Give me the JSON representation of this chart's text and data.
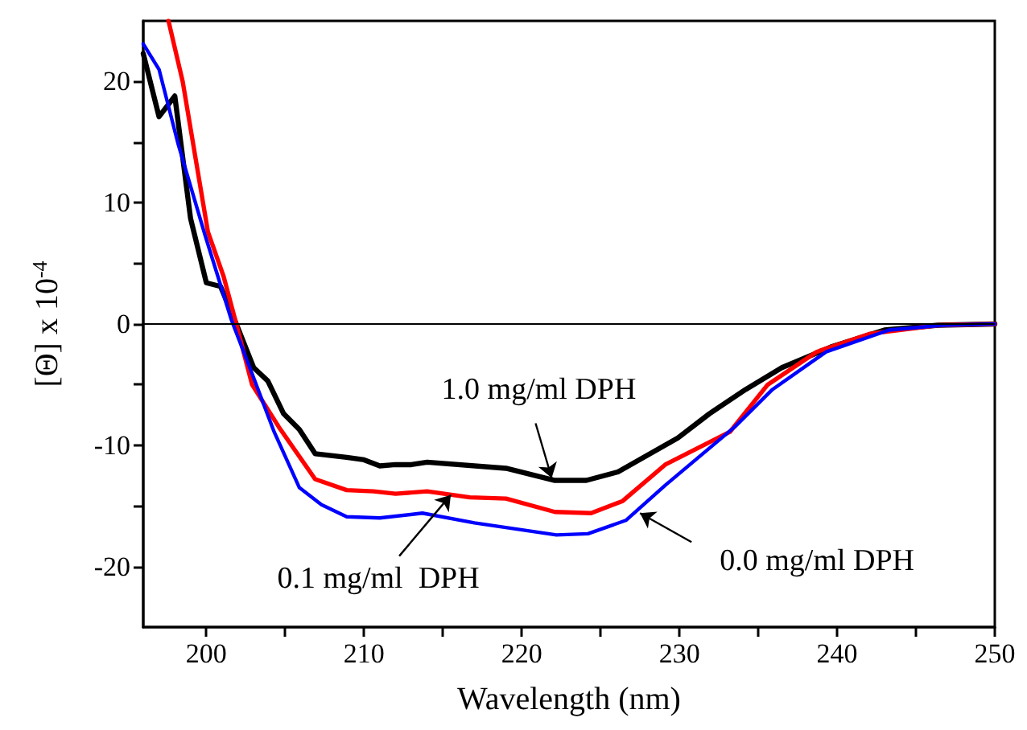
{
  "chart_data": {
    "type": "line",
    "xlabel": "Wavelength (nm)",
    "ylabel": "[Θ] x 10$^{-4}$",
    "xlim": [
      196,
      250
    ],
    "ylim": [
      -25,
      25
    ],
    "xticks": [
      200,
      {
        "value": 205,
        "label": null
      },
      210,
      {
        "value": 215,
        "label": null
      },
      220,
      {
        "value": 225,
        "label": null
      },
      230,
      {
        "value": 235,
        "label": null
      },
      240,
      {
        "value": 245,
        "label": null
      },
      250
    ],
    "yticks": [
      -20,
      {
        "value": -15,
        "label": null
      },
      -10,
      {
        "value": -5,
        "label": null
      },
      0,
      {
        "value": 5,
        "label": null
      },
      10,
      {
        "value": 15,
        "label": null
      },
      20
    ],
    "series": [
      {
        "color": "#000000",
        "x": [
          196,
          197.0,
          198.0,
          199.0,
          200.0,
          200.9,
          201.9,
          203.0,
          203.9,
          204.9,
          205.9,
          206.9,
          208.9,
          210,
          211,
          212,
          213,
          214,
          219.0,
          222.1,
          224.1,
          226.1,
          229.9,
          231.9,
          234.2,
          236.5,
          239.6,
          243.0,
          246.4,
          250
        ],
        "values": [
          22.3,
          17.1,
          18.8,
          8.7,
          3.4,
          3.1,
          0,
          -3.6,
          -4.7,
          -7.4,
          -8.7,
          -10.7,
          -11.0,
          -11.2,
          -11.7,
          -11.6,
          -11.6,
          -11.4,
          -11.9,
          -12.9,
          -12.9,
          -12.2,
          -9.4,
          -7.4,
          -5.4,
          -3.6,
          -1.9,
          -0.5,
          -0.1,
          0
        ]
      },
      {
        "color": "#ff0000",
        "x": [
          197.6,
          198.5,
          200.1,
          201.1,
          201.9,
          202.9,
          204.6,
          206.9,
          208.9,
          210.6,
          212,
          214,
          216.7,
          219.0,
          222.1,
          224.4,
          226.4,
          229.1,
          233.2,
          235.6,
          238.7,
          242.1,
          246.4,
          250
        ],
        "values": [
          25,
          20,
          7.6,
          3.9,
          0,
          -5.0,
          -8.5,
          -12.8,
          -13.7,
          -13.8,
          -14.0,
          -13.8,
          -14.3,
          -14.4,
          -15.5,
          -15.6,
          -14.6,
          -11.6,
          -8.9,
          -5.0,
          -2.3,
          -0.8,
          -0.1,
          0
        ]
      },
      {
        "color": "#0000ff",
        "x": [
          196,
          197.0,
          198.2,
          199.9,
          201.6,
          202.9,
          204.3,
          205.9,
          207.3,
          208.9,
          211,
          213.7,
          217.0,
          222.2,
          224.2,
          226.6,
          229.1,
          233.5,
          235.9,
          239.3,
          243.3,
          246.7,
          250
        ],
        "values": [
          23.1,
          21.0,
          14.9,
          7.4,
          0.3,
          -4.1,
          -8.9,
          -13.5,
          -14.9,
          -15.9,
          -16.0,
          -15.6,
          -16.4,
          -17.4,
          -17.3,
          -16.2,
          -13.3,
          -8.5,
          -5.4,
          -2.3,
          -0.5,
          -0.1,
          0
        ]
      }
    ],
    "ref_lines": [
      {
        "axis": "y",
        "value": 0,
        "color": "#000000"
      }
    ],
    "annotations": [
      {
        "text": "1.0 mg/ml DPH",
        "x": 221.9,
        "y": -12.7
      },
      {
        "text": "0.1 mg/ml  DPH",
        "x": 215.5,
        "y": -14.1
      },
      {
        "text": "0.0 mg/ml DPH",
        "x": 227.5,
        "y": -15.6
      }
    ]
  }
}
